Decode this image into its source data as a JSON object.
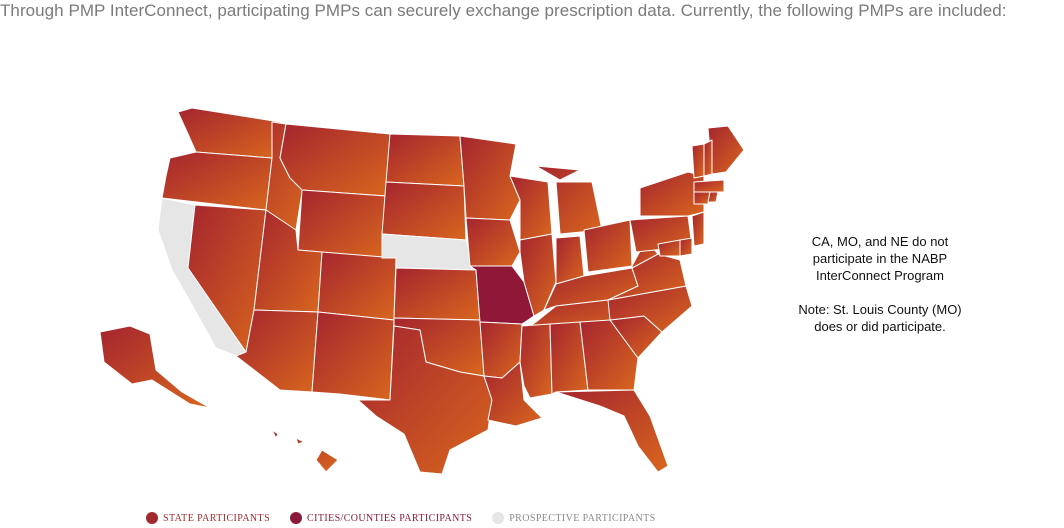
{
  "intro_text": "Through PMP InterConnect, participating PMPs can securely exchange prescription data. Currently, the following PMPs are included:",
  "note": {
    "line1": "CA, MO, and NE do not",
    "line2": "participate in the NABP",
    "line3": "InterConnect Program",
    "line4": "Note: St. Louis County (MO)",
    "line5": "does or did participate."
  },
  "legend": [
    {
      "label": "STATE PARTICIPANTS",
      "color": "#a12a2e"
    },
    {
      "label": "CITIES/COUNTIES PARTICIPANTS",
      "color": "#8c1a3a"
    },
    {
      "label": "PROSPECTIVE PARTICIPANTS",
      "color": "#e6e6e6"
    }
  ],
  "map": {
    "colors": {
      "state_gradient_start": "#a5242f",
      "state_gradient_end": "#d8661e",
      "city_county": "#8f1737",
      "prospective": "#e6e6e6",
      "border": "#ffffff"
    },
    "state_participants": [
      "WA",
      "OR",
      "ID",
      "MT",
      "WY",
      "NV",
      "UT",
      "AZ",
      "CO",
      "NM",
      "ND",
      "SD",
      "KS",
      "OK",
      "TX",
      "MN",
      "IA",
      "AR",
      "LA",
      "WI",
      "IL",
      "MI",
      "IN",
      "OH",
      "KY",
      "TN",
      "MS",
      "AL",
      "GA",
      "FL",
      "SC",
      "NC",
      "VA",
      "WV",
      "PA",
      "NY",
      "ME",
      "NH",
      "VT",
      "MA",
      "CT",
      "RI",
      "NJ",
      "DE",
      "MD",
      "AK",
      "HI"
    ],
    "city_county_participants": [
      "MO"
    ],
    "prospective_participants": [
      "CA",
      "NE"
    ]
  }
}
